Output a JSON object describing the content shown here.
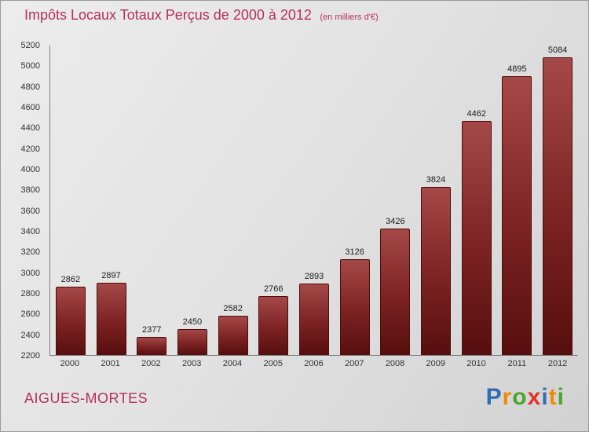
{
  "header": {
    "title": "Impôts Locaux Totaux Perçus de 2000 à 2012",
    "subtitle": "(en milliers d'€)"
  },
  "chart_data": {
    "type": "bar",
    "title": "Impôts Locaux Totaux Perçus de 2000 à 2012",
    "subtitle": "(en milliers d'€)",
    "categories": [
      "2000",
      "2001",
      "2002",
      "2003",
      "2004",
      "2005",
      "2006",
      "2007",
      "2008",
      "2009",
      "2010",
      "2011",
      "2012"
    ],
    "values": [
      2862,
      2897,
      2377,
      2450,
      2582,
      2766,
      2893,
      3126,
      3426,
      3824,
      4462,
      4895,
      5084
    ],
    "xlabel": "",
    "ylabel": "",
    "ylim": [
      2200,
      5200
    ],
    "ytick_step": 200,
    "grid": false,
    "legend": "none",
    "bar_color_top": "#a54848",
    "bar_color_bottom": "#570e0e"
  },
  "colors": {
    "accent_pink": "#b5305c",
    "axis_text": "#333333"
  },
  "footer": {
    "location": "AIGUES-MORTES",
    "logo_letters": [
      {
        "ch": "P",
        "color": "#2f6db5"
      },
      {
        "ch": "r",
        "color": "#f08a00"
      },
      {
        "ch": "o",
        "color": "#4aa52e"
      },
      {
        "ch": "x",
        "color": "#e23128"
      },
      {
        "ch": "i",
        "color": "#2f6db5"
      },
      {
        "ch": "t",
        "color": "#f08a00"
      },
      {
        "ch": "i",
        "color": "#4aa52e"
      }
    ]
  }
}
